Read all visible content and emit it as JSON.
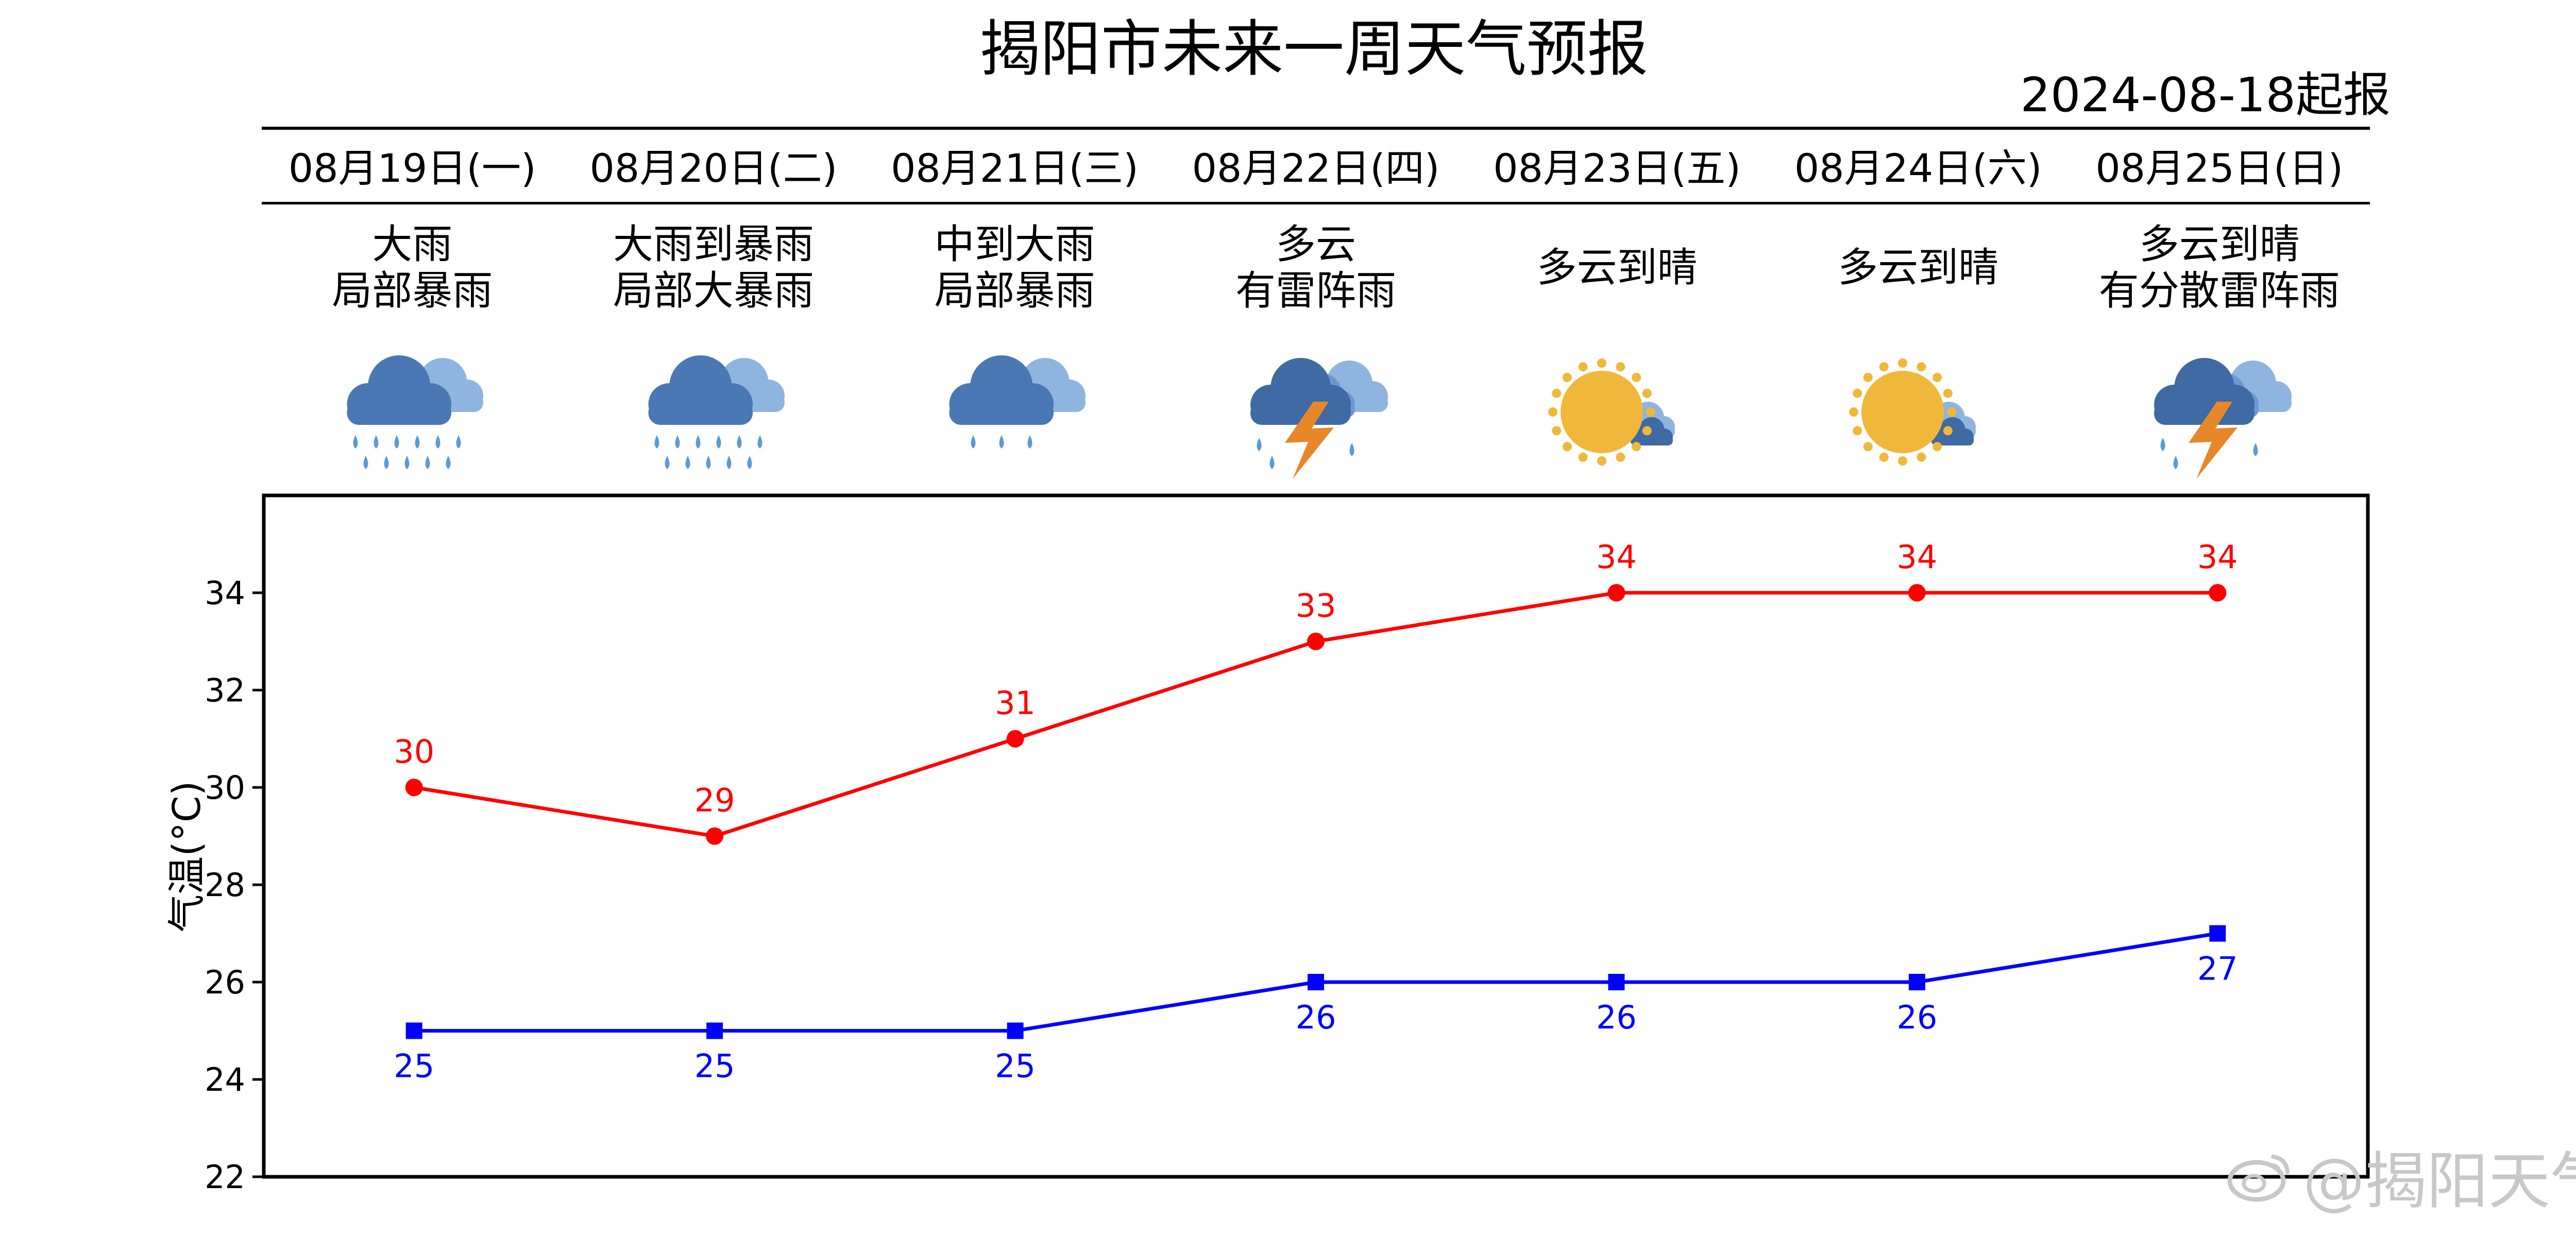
{
  "header": {
    "title": "揭阳市未来一周天气预报",
    "issued": "2024-08-18起报"
  },
  "days": [
    {
      "date": "08月19日(一)",
      "cond1": "大雨",
      "cond2": "局部暴雨",
      "icon": "heavy-rain-icon"
    },
    {
      "date": "08月20日(二)",
      "cond1": "大雨到暴雨",
      "cond2": "局部大暴雨",
      "icon": "heavy-rain-icon"
    },
    {
      "date": "08月21日(三)",
      "cond1": "中到大雨",
      "cond2": "局部暴雨",
      "icon": "moderate-rain-icon"
    },
    {
      "date": "08月22日(四)",
      "cond1": "多云",
      "cond2": "有雷阵雨",
      "icon": "thunderstorm-icon"
    },
    {
      "date": "08月23日(五)",
      "cond1": "多云到晴",
      "cond2": "",
      "icon": "sun-cloud-icon"
    },
    {
      "date": "08月24日(六)",
      "cond1": "多云到晴",
      "cond2": "",
      "icon": "sun-cloud-icon"
    },
    {
      "date": "08月25日(日)",
      "cond1": "多云到晴",
      "cond2": "有分散雷阵雨",
      "icon": "thunderstorm-icon"
    }
  ],
  "chart_data": {
    "type": "line",
    "ylabel": "气温(°C)",
    "ylim": [
      22,
      36
    ],
    "yticks": [
      22,
      24,
      26,
      28,
      30,
      32,
      34
    ],
    "categories": [
      "08月19日(一)",
      "08月20日(二)",
      "08月21日(三)",
      "08月22日(四)",
      "08月23日(五)",
      "08月24日(六)",
      "08月25日(日)"
    ],
    "series": [
      {
        "values": [
          30,
          29,
          31,
          33,
          34,
          34,
          34
        ],
        "color": "#ff0000",
        "marker": "circle",
        "label_position": "above"
      },
      {
        "values": [
          25,
          25,
          25,
          26,
          26,
          26,
          27
        ],
        "color": "#0000ff",
        "marker": "square",
        "label_position": "below"
      }
    ],
    "grid": false,
    "legend": "none"
  },
  "watermark": {
    "text": "@揭阳天气",
    "icon": "weibo-logo-icon"
  },
  "colors": {
    "cloud_light": "#8fb4df",
    "cloud_dark": "#4a78b5",
    "rain": "#5a9ad8",
    "sun": "#f0b83a",
    "lightning": "#e8862a",
    "watermark": "#c8c8c8"
  }
}
